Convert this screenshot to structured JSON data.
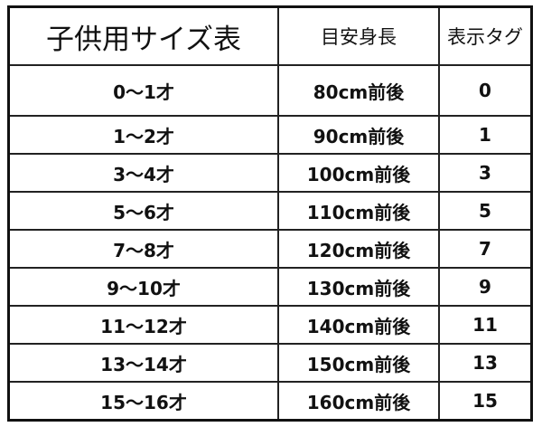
{
  "header": {
    "title": "子供用サイズ表",
    "col_height": "目安身長",
    "col_tag": "表示タグ"
  },
  "rows": [
    {
      "age": "0～1才",
      "height": "80cm前後",
      "tag": "0"
    },
    {
      "age": "1～2才",
      "height": "90cm前後",
      "tag": "1"
    },
    {
      "age": "3～4才",
      "height": "100cm前後",
      "tag": "3"
    },
    {
      "age": "5～6才",
      "height": "110cm前後",
      "tag": "5"
    },
    {
      "age": "7～8才",
      "height": "120cm前後",
      "tag": "7"
    },
    {
      "age": "9～10才",
      "height": "130cm前後",
      "tag": "9"
    },
    {
      "age": "11～12才",
      "height": "140cm前後",
      "tag": "11"
    },
    {
      "age": "13～14才",
      "height": "150cm前後",
      "tag": "13"
    },
    {
      "age": "15～16才",
      "height": "160cm前後",
      "tag": "15"
    }
  ]
}
